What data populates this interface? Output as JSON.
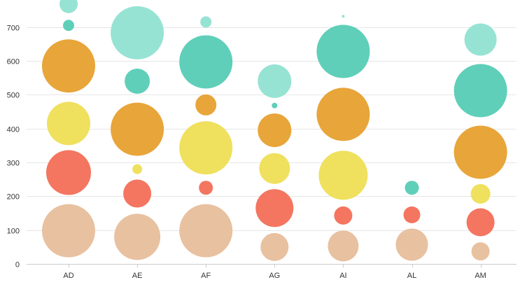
{
  "chart_data": {
    "type": "scatter",
    "subtype": "bubble",
    "title": "",
    "xlabel": "",
    "ylabel": "",
    "ylim": [
      0,
      780
    ],
    "yticks": [
      0,
      100,
      200,
      300,
      400,
      500,
      600,
      700
    ],
    "categories": [
      "AD",
      "AE",
      "AF",
      "AG",
      "AI",
      "AL",
      "AM"
    ],
    "grid": true,
    "legend": "none",
    "colors": {
      "teal_light": "#96e3d4",
      "teal": "#5fcfb9",
      "orange": "#e8a53a",
      "yellow": "#efe05e",
      "red": "#f47560",
      "peach": "#e8c1a0"
    },
    "bubbles": [
      {
        "category": "AD",
        "y": 98,
        "size": 38,
        "color": "peach"
      },
      {
        "category": "AD",
        "y": 270,
        "size": 32,
        "color": "red"
      },
      {
        "category": "AD",
        "y": 415,
        "size": 31,
        "color": "yellow"
      },
      {
        "category": "AD",
        "y": 585,
        "size": 38,
        "color": "orange"
      },
      {
        "category": "AD",
        "y": 705,
        "size": 8,
        "color": "teal"
      },
      {
        "category": "AD",
        "y": 768,
        "size": 13,
        "color": "teal_light"
      },
      {
        "category": "AE",
        "y": 80,
        "size": 33,
        "color": "peach"
      },
      {
        "category": "AE",
        "y": 208,
        "size": 20,
        "color": "red"
      },
      {
        "category": "AE",
        "y": 280,
        "size": 7,
        "color": "yellow"
      },
      {
        "category": "AE",
        "y": 398,
        "size": 38,
        "color": "orange"
      },
      {
        "category": "AE",
        "y": 540,
        "size": 18,
        "color": "teal"
      },
      {
        "category": "AE",
        "y": 683,
        "size": 38,
        "color": "teal_light"
      },
      {
        "category": "AF",
        "y": 98,
        "size": 38,
        "color": "peach"
      },
      {
        "category": "AF",
        "y": 225,
        "size": 10,
        "color": "red"
      },
      {
        "category": "AF",
        "y": 343,
        "size": 38,
        "color": "yellow"
      },
      {
        "category": "AF",
        "y": 470,
        "size": 15,
        "color": "orange"
      },
      {
        "category": "AF",
        "y": 597,
        "size": 38,
        "color": "teal"
      },
      {
        "category": "AF",
        "y": 715,
        "size": 8,
        "color": "teal_light"
      },
      {
        "category": "AG",
        "y": 50,
        "size": 20,
        "color": "peach"
      },
      {
        "category": "AG",
        "y": 165,
        "size": 27,
        "color": "red"
      },
      {
        "category": "AG",
        "y": 282,
        "size": 22,
        "color": "yellow"
      },
      {
        "category": "AG",
        "y": 395,
        "size": 24,
        "color": "orange"
      },
      {
        "category": "AG",
        "y": 468,
        "size": 4,
        "color": "teal"
      },
      {
        "category": "AG",
        "y": 540,
        "size": 24,
        "color": "teal_light"
      },
      {
        "category": "AI",
        "y": 53,
        "size": 22,
        "color": "peach"
      },
      {
        "category": "AI",
        "y": 143,
        "size": 13,
        "color": "red"
      },
      {
        "category": "AI",
        "y": 262,
        "size": 35,
        "color": "yellow"
      },
      {
        "category": "AI",
        "y": 442,
        "size": 38,
        "color": "orange"
      },
      {
        "category": "AI",
        "y": 628,
        "size": 38,
        "color": "teal"
      },
      {
        "category": "AI",
        "y": 732,
        "size": 2,
        "color": "teal_light"
      },
      {
        "category": "AL",
        "y": 57,
        "size": 23,
        "color": "peach"
      },
      {
        "category": "AL",
        "y": 145,
        "size": 12,
        "color": "red"
      },
      {
        "category": "AL",
        "y": 225,
        "size": 10,
        "color": "teal"
      },
      {
        "category": "AM",
        "y": 37,
        "size": 13,
        "color": "peach"
      },
      {
        "category": "AM",
        "y": 123,
        "size": 20,
        "color": "red"
      },
      {
        "category": "AM",
        "y": 207,
        "size": 14,
        "color": "yellow"
      },
      {
        "category": "AM",
        "y": 330,
        "size": 38,
        "color": "orange"
      },
      {
        "category": "AM",
        "y": 512,
        "size": 38,
        "color": "teal"
      },
      {
        "category": "AM",
        "y": 663,
        "size": 23,
        "color": "teal_light"
      }
    ]
  }
}
